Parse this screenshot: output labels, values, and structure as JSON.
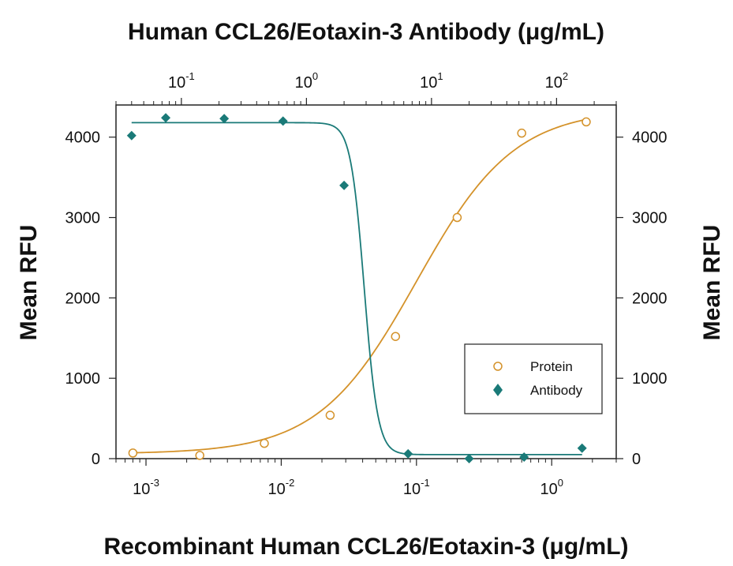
{
  "chart_data": {
    "type": "scatter",
    "title": "Human CCL26/Eotaxin-3 Antibody (μg/mL)",
    "xlabel": "Recombinant Human CCL26/Eotaxin-3 (μg/mL)",
    "ylabel_left": "Mean RFU",
    "ylabel_right": "Mean RFU",
    "x_scale": "log",
    "xlim": [
      0.0006,
      3
    ],
    "top_x_scale": "log",
    "top_xlim": [
      0.03,
      300
    ],
    "ylim": [
      0,
      4400
    ],
    "grid": false,
    "legend_position": "bottom-right",
    "bottom_ticks": [
      {
        "base": "10",
        "exp": "-3",
        "value": 0.001
      },
      {
        "base": "10",
        "exp": "-2",
        "value": 0.01
      },
      {
        "base": "10",
        "exp": "-1",
        "value": 0.1
      },
      {
        "base": "10",
        "exp": "0",
        "value": 1
      }
    ],
    "top_ticks": [
      {
        "base": "10",
        "exp": "-1",
        "value": 0.1
      },
      {
        "base": "10",
        "exp": "0",
        "value": 1
      },
      {
        "base": "10",
        "exp": "1",
        "value": 10
      },
      {
        "base": "10",
        "exp": "2",
        "value": 100
      }
    ],
    "y_ticks": [
      "0",
      "1000",
      "2000",
      "3000",
      "4000"
    ],
    "y_tick_values": [
      0,
      1000,
      2000,
      3000,
      4000
    ],
    "series": [
      {
        "name": "Protein",
        "x_axis": "bottom",
        "marker": "open-circle",
        "color": "#D4922A",
        "points": [
          {
            "x": 0.0008,
            "y": 70
          },
          {
            "x": 0.0025,
            "y": 40
          },
          {
            "x": 0.0075,
            "y": 190
          },
          {
            "x": 0.023,
            "y": 540
          },
          {
            "x": 0.07,
            "y": 1520
          },
          {
            "x": 0.2,
            "y": 3000
          },
          {
            "x": 0.6,
            "y": 4050
          },
          {
            "x": 1.8,
            "y": 4190
          }
        ],
        "fit": {
          "bottom": 60,
          "top": 4350,
          "ec50": 0.1,
          "hill": 1.2
        }
      },
      {
        "name": "Antibody",
        "x_axis": "top",
        "marker": "filled-diamond",
        "color": "#1A7A78",
        "points": [
          {
            "x": 0.04,
            "y": 4020
          },
          {
            "x": 0.075,
            "y": 4240
          },
          {
            "x": 0.22,
            "y": 4230
          },
          {
            "x": 0.65,
            "y": 4200
          },
          {
            "x": 2.0,
            "y": 3400
          },
          {
            "x": 6.5,
            "y": 60
          },
          {
            "x": 20,
            "y": 0
          },
          {
            "x": 55,
            "y": 20
          },
          {
            "x": 160,
            "y": 130
          }
        ],
        "fit": {
          "top": 4180,
          "bottom": 50,
          "ic50": 2.9,
          "hill": 8
        }
      }
    ]
  }
}
